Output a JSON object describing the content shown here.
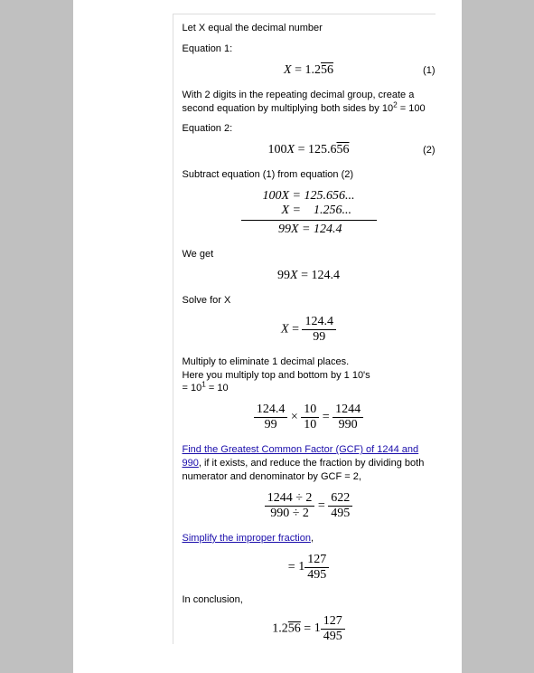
{
  "colors": {
    "page_bg": "#ffffff",
    "outer_bg": "#c0c0c0",
    "text": "#000000",
    "link": "#1a0dab",
    "rule": "#dddddd"
  },
  "typography": {
    "body_font": "Arial",
    "body_size_pt": 8,
    "math_font": "Times New Roman",
    "math_size_pt": 11
  },
  "intro": {
    "line1": "Let X equal the decimal number",
    "eq1_label": "Equation 1:"
  },
  "eq1": {
    "lhs": "X",
    "equals": " = ",
    "prefix": "1.2",
    "repeat": "56",
    "num": "(1)"
  },
  "step2": {
    "text": "With 2 digits in the repeating decimal group, create a second equation by multiplying both sides by 10",
    "exponent": "2",
    "after": " = 100",
    "eq2_label": "Equation 2:"
  },
  "eq2": {
    "lhs": "100X",
    "equals": " = ",
    "prefix": "125.6",
    "repeat": "56",
    "num": "(2)"
  },
  "subtract_intro": "Subtract equation (1) from equation (2)",
  "subtract": {
    "row1_l": "100X",
    "row1_r": "125.656...",
    "row2_l": "X",
    "row2_r": "1.256...",
    "row3_l": "99X",
    "row3_r": "124.4"
  },
  "weget": "We get",
  "eq_99x": {
    "text": "99X = 124.4"
  },
  "solve": "Solve for X",
  "eq_solve": {
    "lhs": "X = ",
    "num": "124.4",
    "den": "99"
  },
  "multiply_text": {
    "l1": "Multiply to eliminate 1 decimal places.",
    "l2": "Here you multiply top and bottom by 1 10's",
    "l3_prefix": "= 10",
    "l3_exp": "1",
    "l3_suffix": " = 10"
  },
  "eq_mult": {
    "f1_num": "124.4",
    "f1_den": "99",
    "times": " × ",
    "f2_num": "10",
    "f2_den": "10",
    "eq": " = ",
    "f3_num": "1244",
    "f3_den": "990"
  },
  "gcf": {
    "link": "Find the Greatest Common Factor (GCF) of 1244 and 990",
    "after": ", if it exists, and reduce the fraction by dividing both numerator and denominator by GCF = 2,"
  },
  "eq_gcf": {
    "f1_num": "1244 ÷ 2",
    "f1_den": "990 ÷ 2",
    "eq": " = ",
    "f2_num": "622",
    "f2_den": "495"
  },
  "simplify": {
    "link": "Simplify the improper fraction",
    "after": ","
  },
  "eq_mixed": {
    "eq": "= ",
    "whole": "1",
    "num": "127",
    "den": "495"
  },
  "conclusion": "In conclusion,",
  "eq_final": {
    "prefix": "1.2",
    "repeat": "56",
    "eq": " = ",
    "whole": "1",
    "num": "127",
    "den": "495"
  }
}
